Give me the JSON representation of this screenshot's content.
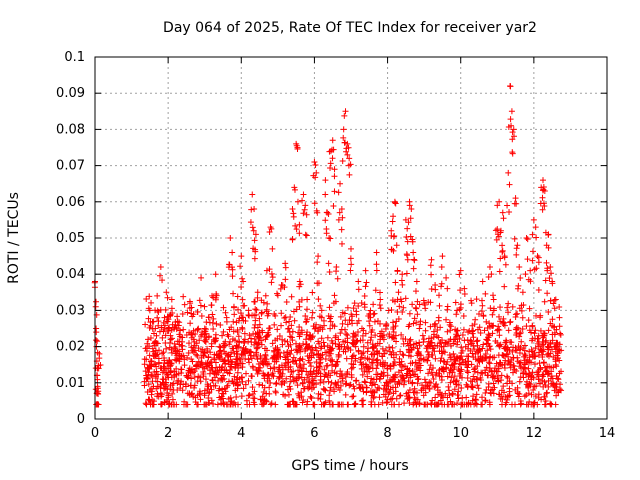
{
  "chart_data": {
    "type": "scatter",
    "title": "Day 064 of 2025, Rate Of TEC Index for receiver yar2",
    "xlabel": "GPS time / hours",
    "ylabel": "ROTI / TECUs",
    "xlim": [
      0,
      14
    ],
    "ylim": [
      0,
      0.1
    ],
    "x_ticks": [
      "0",
      "2",
      "4",
      "6",
      "8",
      "10",
      "12",
      "14"
    ],
    "y_ticks": [
      "0",
      "0.01",
      "0.02",
      "0.03",
      "0.04",
      "0.05",
      "0.06",
      "0.07",
      "0.08",
      "0.09",
      "0.1"
    ],
    "grid": true,
    "marker": "+",
    "marker_color": "#ff0000",
    "series": [
      {
        "name": "ROTI",
        "points_hours_tecus": [
          [
            0.0,
            0.038
          ],
          [
            0.02,
            0.031
          ],
          [
            0.03,
            0.025
          ],
          [
            0.04,
            0.02
          ],
          [
            0.05,
            0.016
          ],
          [
            0.06,
            0.012
          ],
          [
            0.07,
            0.009
          ],
          [
            0.08,
            0.007
          ],
          [
            0.1,
            0.014
          ],
          [
            0.12,
            0.018
          ],
          [
            1.4,
            0.012
          ],
          [
            1.45,
            0.022
          ],
          [
            1.5,
            0.03
          ],
          [
            1.55,
            0.016
          ],
          [
            1.6,
            0.009
          ],
          [
            1.65,
            0.025
          ],
          [
            1.7,
            0.034
          ],
          [
            1.75,
            0.019
          ],
          [
            1.8,
            0.042
          ],
          [
            1.85,
            0.011
          ],
          [
            1.9,
            0.028
          ],
          [
            1.95,
            0.035
          ],
          [
            2.0,
            0.014
          ],
          [
            2.05,
            0.021
          ],
          [
            2.1,
            0.033
          ],
          [
            2.15,
            0.008
          ],
          [
            2.2,
            0.026
          ],
          [
            2.3,
            0.018
          ],
          [
            2.4,
            0.029
          ],
          [
            2.5,
            0.012
          ],
          [
            2.6,
            0.032
          ],
          [
            2.7,
            0.022
          ],
          [
            2.8,
            0.015
          ],
          [
            2.9,
            0.039
          ],
          [
            3.0,
            0.025
          ],
          [
            3.1,
            0.017
          ],
          [
            3.2,
            0.034
          ],
          [
            3.3,
            0.04
          ],
          [
            3.4,
            0.02
          ],
          [
            3.5,
            0.012
          ],
          [
            3.6,
            0.028
          ],
          [
            3.7,
            0.05
          ],
          [
            3.75,
            0.046
          ],
          [
            3.8,
            0.031
          ],
          [
            3.9,
            0.018
          ],
          [
            4.0,
            0.045
          ],
          [
            4.05,
            0.038
          ],
          [
            4.1,
            0.022
          ],
          [
            4.2,
            0.03
          ],
          [
            4.3,
            0.062
          ],
          [
            4.35,
            0.058
          ],
          [
            4.4,
            0.051
          ],
          [
            4.45,
            0.035
          ],
          [
            4.5,
            0.024
          ],
          [
            4.6,
            0.016
          ],
          [
            4.7,
            0.041
          ],
          [
            4.8,
            0.053
          ],
          [
            4.85,
            0.047
          ],
          [
            4.9,
            0.029
          ],
          [
            5.0,
            0.019
          ],
          [
            5.1,
            0.037
          ],
          [
            5.2,
            0.043
          ],
          [
            5.3,
            0.025
          ],
          [
            5.4,
            0.058
          ],
          [
            5.45,
            0.064
          ],
          [
            5.5,
            0.076
          ],
          [
            5.55,
            0.06
          ],
          [
            5.6,
            0.038
          ],
          [
            5.7,
            0.062
          ],
          [
            5.75,
            0.059
          ],
          [
            5.8,
            0.033
          ],
          [
            5.9,
            0.022
          ],
          [
            6.0,
            0.071
          ],
          [
            6.05,
            0.068
          ],
          [
            6.1,
            0.045
          ],
          [
            6.2,
            0.03
          ],
          [
            6.3,
            0.066
          ],
          [
            6.35,
            0.057
          ],
          [
            6.4,
            0.05
          ],
          [
            6.45,
            0.074
          ],
          [
            6.5,
            0.077
          ],
          [
            6.55,
            0.069
          ],
          [
            6.6,
            0.042
          ],
          [
            6.7,
            0.065
          ],
          [
            6.75,
            0.058
          ],
          [
            6.8,
            0.08
          ],
          [
            6.85,
            0.085
          ],
          [
            6.9,
            0.076
          ],
          [
            6.95,
            0.072
          ],
          [
            7.0,
            0.047
          ],
          [
            7.1,
            0.032
          ],
          [
            7.2,
            0.038
          ],
          [
            7.3,
            0.025
          ],
          [
            7.4,
            0.041
          ],
          [
            7.5,
            0.029
          ],
          [
            7.6,
            0.018
          ],
          [
            7.7,
            0.046
          ],
          [
            7.8,
            0.033
          ],
          [
            7.9,
            0.022
          ],
          [
            8.0,
            0.014
          ],
          [
            8.1,
            0.052
          ],
          [
            8.15,
            0.056
          ],
          [
            8.2,
            0.06
          ],
          [
            8.25,
            0.048
          ],
          [
            8.3,
            0.035
          ],
          [
            8.4,
            0.04
          ],
          [
            8.5,
            0.055
          ],
          [
            8.55,
            0.049
          ],
          [
            8.6,
            0.06
          ],
          [
            8.65,
            0.058
          ],
          [
            8.7,
            0.046
          ],
          [
            8.8,
            0.038
          ],
          [
            8.9,
            0.027
          ],
          [
            9.0,
            0.032
          ],
          [
            9.1,
            0.02
          ],
          [
            9.2,
            0.044
          ],
          [
            9.3,
            0.037
          ],
          [
            9.4,
            0.028
          ],
          [
            9.5,
            0.045
          ],
          [
            9.6,
            0.039
          ],
          [
            9.7,
            0.026
          ],
          [
            9.8,
            0.018
          ],
          [
            9.9,
            0.03
          ],
          [
            10.0,
            0.041
          ],
          [
            10.1,
            0.036
          ],
          [
            10.2,
            0.024
          ],
          [
            10.3,
            0.032
          ],
          [
            10.4,
            0.018
          ],
          [
            10.5,
            0.029
          ],
          [
            10.6,
            0.038
          ],
          [
            10.7,
            0.022
          ],
          [
            10.8,
            0.042
          ],
          [
            10.9,
            0.033
          ],
          [
            11.0,
            0.059
          ],
          [
            11.05,
            0.06
          ],
          [
            11.1,
            0.052
          ],
          [
            11.15,
            0.057
          ],
          [
            11.2,
            0.045
          ],
          [
            11.3,
            0.068
          ],
          [
            11.35,
            0.092
          ],
          [
            11.4,
            0.085
          ],
          [
            11.45,
            0.08
          ],
          [
            11.5,
            0.061
          ],
          [
            11.55,
            0.048
          ],
          [
            11.6,
            0.042
          ],
          [
            11.7,
            0.035
          ],
          [
            11.8,
            0.05
          ],
          [
            11.9,
            0.041
          ],
          [
            12.0,
            0.055
          ],
          [
            12.05,
            0.053
          ],
          [
            12.1,
            0.045
          ],
          [
            12.2,
            0.064
          ],
          [
            12.25,
            0.066
          ],
          [
            12.3,
            0.063
          ],
          [
            12.35,
            0.048
          ],
          [
            12.4,
            0.051
          ],
          [
            12.45,
            0.042
          ],
          [
            12.5,
            0.038
          ],
          [
            12.6,
            0.033
          ],
          [
            12.7,
            0.028
          ]
        ],
        "dense_band": {
          "x_start": 1.35,
          "x_end": 12.75,
          "y_range": [
            0.004,
            0.035
          ],
          "y_center": 0.015,
          "count": 2200
        }
      }
    ]
  }
}
